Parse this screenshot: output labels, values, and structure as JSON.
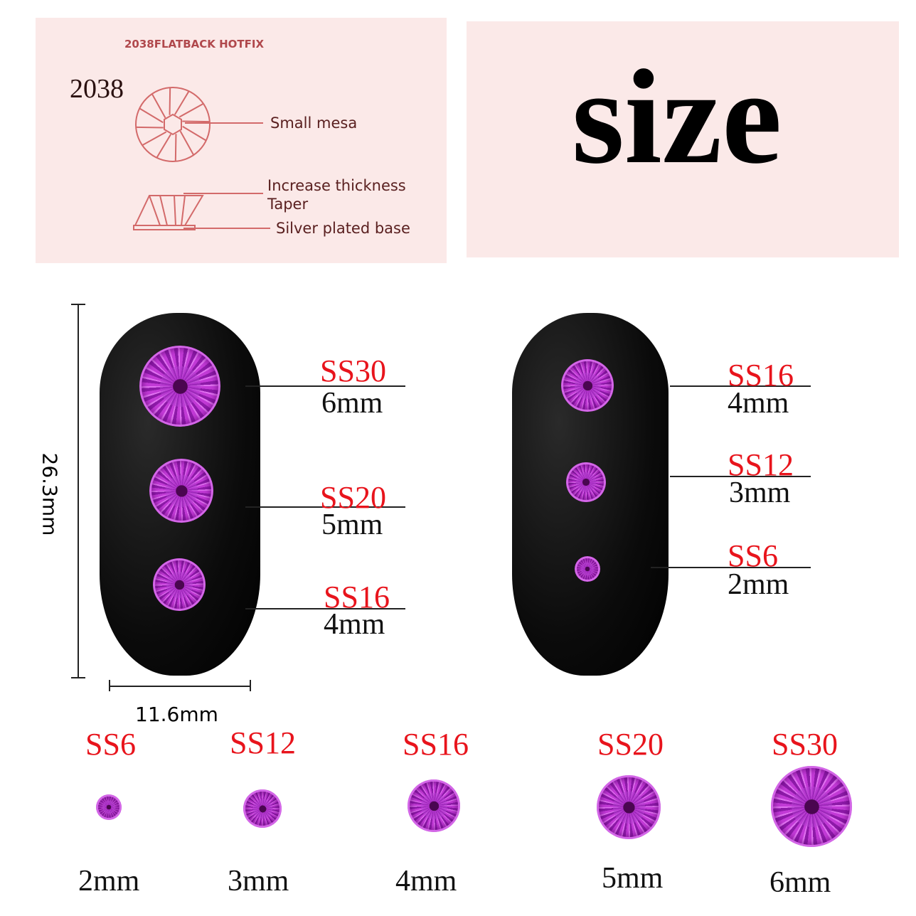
{
  "diagram": {
    "heading": "2038FLATBACK HOTFIX",
    "model": "2038",
    "labels": [
      "Small mesa",
      "Increase thickness",
      "Taper",
      "Silver plated base"
    ]
  },
  "title": "size",
  "nail_dims": {
    "height": "26.3mm",
    "width": "11.6mm"
  },
  "left_nail": [
    {
      "ss": "SS30",
      "mm": "6mm"
    },
    {
      "ss": "SS20",
      "mm": "5mm"
    },
    {
      "ss": "SS16",
      "mm": "4mm"
    }
  ],
  "right_nail": [
    {
      "ss": "SS16",
      "mm": "4mm"
    },
    {
      "ss": "SS12",
      "mm": "3mm"
    },
    {
      "ss": "SS6",
      "mm": "2mm"
    }
  ],
  "row": [
    {
      "ss": "SS6",
      "mm": "2mm"
    },
    {
      "ss": "SS12",
      "mm": "3mm"
    },
    {
      "ss": "SS16",
      "mm": "4mm"
    },
    {
      "ss": "SS20",
      "mm": "5mm"
    },
    {
      "ss": "SS30",
      "mm": "6mm"
    }
  ],
  "colors": {
    "label_red": "#e8141c",
    "gem": "#a020c0",
    "panel": "#fbe9e8",
    "diagram_line": "#d36a6a"
  }
}
